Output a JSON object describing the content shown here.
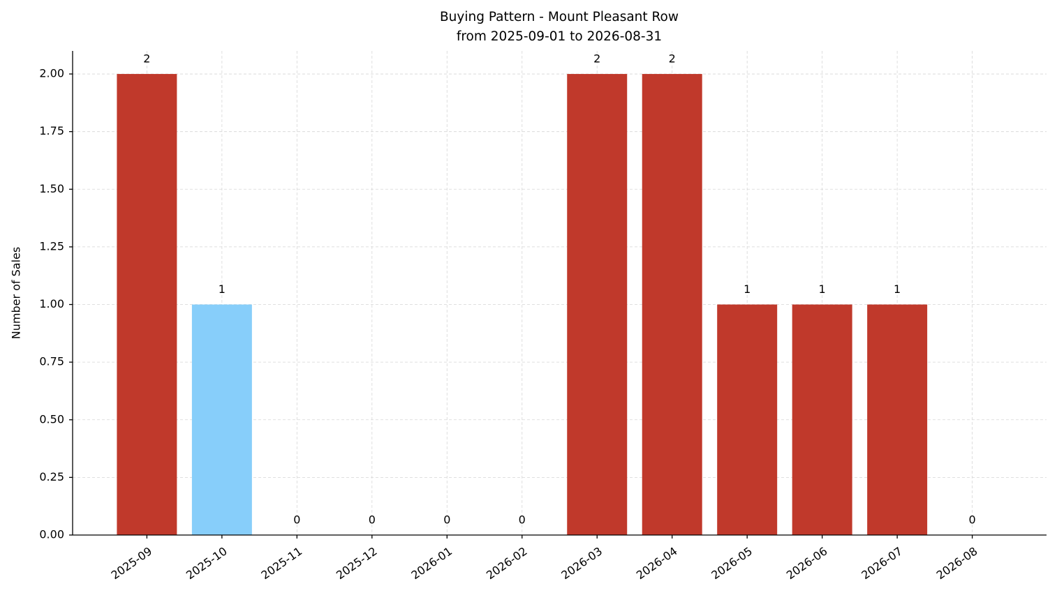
{
  "chart_data": {
    "type": "bar",
    "title": "Buying Pattern - Mount Pleasant Row",
    "subtitle": "from 2025-09-01 to 2026-08-31",
    "ylabel": "Number of Sales",
    "categories": [
      "2025-09",
      "2025-10",
      "2025-11",
      "2025-12",
      "2026-01",
      "2026-02",
      "2026-03",
      "2026-04",
      "2026-05",
      "2026-06",
      "2026-07",
      "2026-08"
    ],
    "values": [
      2,
      1,
      0,
      0,
      0,
      0,
      2,
      2,
      1,
      1,
      1,
      0
    ],
    "colors": [
      "#c0392b",
      "#87cefa",
      "#c0392b",
      "#c0392b",
      "#c0392b",
      "#c0392b",
      "#c0392b",
      "#c0392b",
      "#c0392b",
      "#c0392b",
      "#c0392b",
      "#c0392b"
    ],
    "ylim": [
      0,
      2.1
    ],
    "yticks": [
      {
        "value": 0,
        "label": "0.00"
      },
      {
        "value": 0.25,
        "label": "0.25"
      },
      {
        "value": 0.5,
        "label": "0.50"
      },
      {
        "value": 0.75,
        "label": "0.75"
      },
      {
        "value": 1,
        "label": "1.00"
      },
      {
        "value": 1.25,
        "label": "1.25"
      },
      {
        "value": 1.5,
        "label": "1.50"
      },
      {
        "value": 1.75,
        "label": "1.75"
      },
      {
        "value": 2,
        "label": "2.00"
      }
    ],
    "grid": true
  }
}
